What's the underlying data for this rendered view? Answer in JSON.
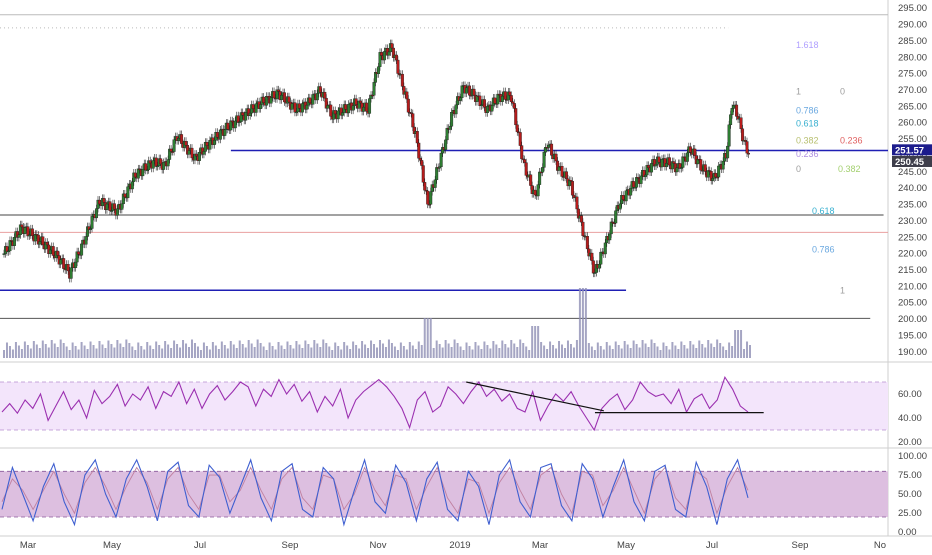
{
  "chart_data": [
    {
      "panel": "price",
      "type": "candlestick",
      "title": "",
      "y_axis_labels": [
        "190.00",
        "195.00",
        "200.00",
        "205.00",
        "210.00",
        "215.00",
        "220.00",
        "225.00",
        "230.00",
        "235.00",
        "240.00",
        "245.00",
        "250.00",
        "255.00",
        "260.00",
        "265.00",
        "270.00",
        "275.00",
        "280.00",
        "285.00",
        "290.00",
        "295.00"
      ],
      "ylim": [
        187.5,
        297.5
      ],
      "x_axis_labels": [
        "Mar",
        "May",
        "Jul",
        "Sep",
        "Nov",
        "2019",
        "Mar",
        "May",
        "Jul",
        "Sep",
        "No"
      ],
      "price_badges": [
        {
          "value": "251.57",
          "color": "#1c1c8c"
        },
        {
          "value": "250.45",
          "color": "#3d3d4a"
        }
      ],
      "candles_close_path": [
        {
          "t": 0,
          "c": 220
        },
        {
          "t": 3,
          "c": 228
        },
        {
          "t": 6,
          "c": 224
        },
        {
          "t": 9,
          "c": 219
        },
        {
          "t": 11,
          "c": 214
        },
        {
          "t": 13,
          "c": 222
        },
        {
          "t": 16,
          "c": 236
        },
        {
          "t": 19,
          "c": 233
        },
        {
          "t": 22,
          "c": 244
        },
        {
          "t": 25,
          "c": 248
        },
        {
          "t": 27,
          "c": 247
        },
        {
          "t": 29,
          "c": 256
        },
        {
          "t": 32,
          "c": 249
        },
        {
          "t": 34,
          "c": 253
        },
        {
          "t": 37,
          "c": 258
        },
        {
          "t": 40,
          "c": 262
        },
        {
          "t": 43,
          "c": 266
        },
        {
          "t": 46,
          "c": 269
        },
        {
          "t": 49,
          "c": 264
        },
        {
          "t": 51,
          "c": 266
        },
        {
          "t": 53,
          "c": 270
        },
        {
          "t": 55,
          "c": 262
        },
        {
          "t": 57,
          "c": 264
        },
        {
          "t": 59,
          "c": 266
        },
        {
          "t": 61,
          "c": 264
        },
        {
          "t": 63,
          "c": 280
        },
        {
          "t": 65,
          "c": 283
        },
        {
          "t": 67,
          "c": 270
        },
        {
          "t": 69,
          "c": 256
        },
        {
          "t": 71,
          "c": 235
        },
        {
          "t": 73,
          "c": 248
        },
        {
          "t": 75,
          "c": 262
        },
        {
          "t": 77,
          "c": 271
        },
        {
          "t": 79,
          "c": 268
        },
        {
          "t": 81,
          "c": 264
        },
        {
          "t": 83,
          "c": 268
        },
        {
          "t": 85,
          "c": 268
        },
        {
          "t": 87,
          "c": 248
        },
        {
          "t": 89,
          "c": 237
        },
        {
          "t": 91,
          "c": 254
        },
        {
          "t": 93,
          "c": 246
        },
        {
          "t": 95,
          "c": 241
        },
        {
          "t": 97,
          "c": 227
        },
        {
          "t": 99,
          "c": 214
        },
        {
          "t": 101,
          "c": 224
        },
        {
          "t": 103,
          "c": 235
        },
        {
          "t": 105,
          "c": 240
        },
        {
          "t": 107,
          "c": 244
        },
        {
          "t": 109,
          "c": 248
        },
        {
          "t": 111,
          "c": 248
        },
        {
          "t": 113,
          "c": 246
        },
        {
          "t": 115,
          "c": 252
        },
        {
          "t": 117,
          "c": 246
        },
        {
          "t": 119,
          "c": 243
        },
        {
          "t": 121,
          "c": 250
        },
        {
          "t": 122,
          "c": 266
        },
        {
          "t": 123,
          "c": 262
        },
        {
          "t": 124,
          "c": 254
        },
        {
          "t": 125,
          "c": 250
        }
      ],
      "horizontal_lines": [
        {
          "y": 251.5,
          "color": "#1f1fb4",
          "x_from": 0.26,
          "x_to": 1
        },
        {
          "y": 208.8,
          "color": "#1f1fb4",
          "x_from": 0,
          "x_to": 0.705
        },
        {
          "y": 231.8,
          "color": "#444444",
          "x_from": 0,
          "x_to": 0.995
        },
        {
          "y": 226.5,
          "color": "#e9a0a0",
          "x_from": 0,
          "x_to": 1
        },
        {
          "y": 200.2,
          "color": "#555555",
          "x_from": 0,
          "x_to": 0.98
        },
        {
          "y": 293.0,
          "color": "#bbbbbb",
          "x_from": 0,
          "x_to": 1
        },
        {
          "y": 289.0,
          "color": "#bbbbbb",
          "x_from": 0,
          "x_to": 0.82,
          "dotted": true
        }
      ],
      "fib_right": [
        {
          "label": "1.618",
          "y": 283.8,
          "color": "#b0a0ff"
        },
        {
          "label": "1",
          "y": 269.6,
          "color": "#9e9e9e"
        },
        {
          "label": "0",
          "y": 269.6,
          "color": "#9e9e9e"
        },
        {
          "label": "0.786",
          "y": 263.8,
          "color": "#6aa8e0"
        },
        {
          "label": "0.618",
          "y": 259.8,
          "color": "#38b0d0"
        },
        {
          "label": "0.382",
          "y": 254.5,
          "color": "#b8c070"
        },
        {
          "label": "0.236",
          "y": 254.5,
          "color": "#e06060"
        },
        {
          "label": "0.236",
          "y": 250.5,
          "color": "#b090e0"
        },
        {
          "label": "0",
          "y": 245.8,
          "color": "#9e9e9e"
        },
        {
          "label": "0.382",
          "y": 245.8,
          "color": "#a4d070"
        },
        {
          "label": "0.618",
          "y": 233.0,
          "color": "#38b0d0"
        },
        {
          "label": "0.786",
          "y": 221.3,
          "color": "#6aa8e0"
        },
        {
          "label": "1",
          "y": 208.8,
          "color": "#9e9e9e"
        }
      ]
    },
    {
      "panel": "rsi",
      "type": "line",
      "y_axis_labels": [
        "20.00",
        "40.00",
        "60.00"
      ],
      "ylim": [
        15,
        85
      ],
      "band": [
        30,
        70
      ],
      "trendlines": [
        {
          "from": {
            "t": 0.525,
            "v": 70
          },
          "to": {
            "t": 0.68,
            "v": 46
          }
        },
        {
          "from": {
            "t": 0.67,
            "v": 44.5
          },
          "to": {
            "t": 0.86,
            "v": 44.5
          }
        }
      ],
      "values": [
        45,
        52,
        44,
        55,
        48,
        60,
        38,
        50,
        62,
        47,
        55,
        40,
        63,
        52,
        58,
        68,
        50,
        60,
        55,
        66,
        48,
        62,
        58,
        70,
        52,
        64,
        48,
        60,
        67,
        55,
        62,
        70,
        66,
        50,
        64,
        58,
        72,
        60,
        68,
        54,
        62,
        45,
        58,
        50,
        64,
        40,
        55,
        62,
        67,
        72,
        66,
        58,
        48,
        32,
        55,
        62,
        45,
        50,
        66,
        60,
        52,
        62,
        70,
        58,
        64,
        54,
        60,
        48,
        45,
        62,
        38,
        50,
        60,
        54,
        62,
        50,
        40,
        30,
        48,
        55,
        60,
        47,
        55,
        70,
        62,
        58,
        60,
        52,
        64,
        45,
        56,
        60,
        48,
        55,
        74,
        64,
        50,
        45
      ]
    },
    {
      "panel": "stoch",
      "type": "line",
      "y_axis_labels": [
        "0.00",
        "25.00",
        "50.00",
        "75.00",
        "100.00"
      ],
      "ylim": [
        -5,
        108
      ],
      "band": [
        20,
        80
      ],
      "k_values": [
        30,
        85,
        50,
        15,
        60,
        90,
        40,
        10,
        75,
        95,
        50,
        20,
        70,
        95,
        60,
        15,
        80,
        92,
        35,
        20,
        88,
        72,
        25,
        60,
        95,
        45,
        15,
        80,
        90,
        30,
        20,
        85,
        70,
        10,
        55,
        95,
        40,
        25,
        88,
        65,
        15,
        70,
        92,
        30,
        15,
        80,
        60,
        10,
        75,
        95,
        40,
        20,
        85,
        90,
        35,
        15,
        90,
        70,
        20,
        60,
        95,
        40,
        15,
        80,
        88,
        30,
        20,
        92,
        60,
        10,
        70,
        95,
        45
      ],
      "d_values": [
        40,
        70,
        55,
        30,
        55,
        80,
        50,
        25,
        65,
        85,
        60,
        30,
        60,
        85,
        65,
        30,
        70,
        85,
        50,
        30,
        75,
        75,
        40,
        55,
        85,
        55,
        30,
        70,
        85,
        45,
        30,
        75,
        70,
        30,
        50,
        85,
        55,
        35,
        75,
        70,
        30,
        60,
        85,
        45,
        25,
        70,
        65,
        25,
        65,
        85,
        55,
        30,
        75,
        85,
        50,
        25,
        80,
        75,
        35,
        55,
        85,
        55,
        25,
        70,
        85,
        45,
        30,
        80,
        70,
        25,
        60,
        85,
        55
      ]
    }
  ]
}
